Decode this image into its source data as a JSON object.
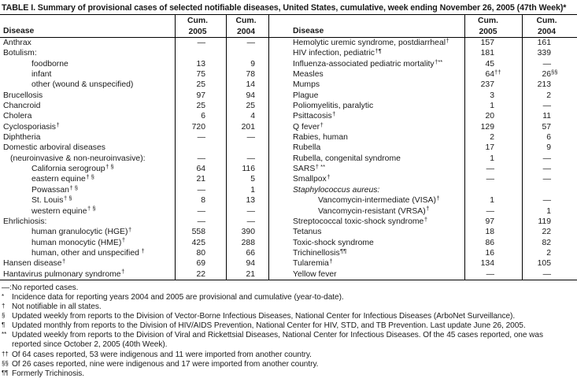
{
  "title": "TABLE I. Summary of provisional cases of selected notifiable diseases, United States, cumulative, week ending November 26, 2005 (47th Week)*",
  "colors": {
    "background": "#ffffff",
    "text": "#1a1a1a",
    "rule": "#000000"
  },
  "table": {
    "header": {
      "disease_left": "Disease",
      "disease_right": "Disease",
      "cum": "Cum.",
      "year_2005": "2005",
      "year_2004": "2004"
    },
    "rows": [
      {
        "l": {
          "t": "Anthrax",
          "a": "—",
          "b": "—"
        },
        "r": {
          "t": "Hemolytic uremic syndrome, postdiarrheal",
          "s": "†",
          "a": "157",
          "b": "161"
        }
      },
      {
        "l": {
          "t": "Botulism:"
        },
        "r": {
          "t": "HIV infection, pediatric",
          "s": "†¶",
          "a": "181",
          "b": "339"
        }
      },
      {
        "l": {
          "t": "foodborne",
          "i": 2,
          "a": "13",
          "b": "9"
        },
        "r": {
          "t": "Influenza-associated pediatric mortality",
          "s": "†**",
          "a": "45",
          "b": "—"
        }
      },
      {
        "l": {
          "t": "infant",
          "i": 2,
          "a": "75",
          "b": "78"
        },
        "r": {
          "t": "Measles",
          "a": "64",
          "as": "††",
          "b": "26",
          "bs": "§§"
        }
      },
      {
        "l": {
          "t": "other (wound & unspecified)",
          "i": 2,
          "a": "25",
          "b": "14"
        },
        "r": {
          "t": "Mumps",
          "a": "237",
          "b": "213"
        }
      },
      {
        "l": {
          "t": "Brucellosis",
          "a": "97",
          "b": "94"
        },
        "r": {
          "t": "Plague",
          "a": "3",
          "b": "2"
        }
      },
      {
        "l": {
          "t": "Chancroid",
          "a": "25",
          "b": "25"
        },
        "r": {
          "t": "Poliomyelitis, paralytic",
          "a": "1",
          "b": "—"
        }
      },
      {
        "l": {
          "t": "Cholera",
          "a": "6",
          "b": "4"
        },
        "r": {
          "t": "Psittacosis",
          "s": "†",
          "a": "20",
          "b": "11"
        }
      },
      {
        "l": {
          "t": "Cyclosporiasis",
          "s": "†",
          "a": "720",
          "b": "201"
        },
        "r": {
          "t": "Q fever",
          "s": "†",
          "a": "129",
          "b": "57"
        }
      },
      {
        "l": {
          "t": "Diphtheria",
          "a": "—",
          "b": "—"
        },
        "r": {
          "t": "Rabies, human",
          "a": "2",
          "b": "6"
        }
      },
      {
        "l": {
          "t": "Domestic arboviral diseases"
        },
        "r": {
          "t": "Rubella",
          "a": "17",
          "b": "9"
        }
      },
      {
        "l": {
          "t": "(neuroinvasive & non-neuroinvasive):",
          "i": 1,
          "a": "—",
          "b": "—"
        },
        "r": {
          "t": "Rubella, congenital syndrome",
          "a": "1",
          "b": "—"
        }
      },
      {
        "l": {
          "t": "California serogroup",
          "s": "† §",
          "i": 2,
          "a": "64",
          "b": "116"
        },
        "r": {
          "t": "SARS",
          "s": "† **",
          "a": "—",
          "b": "—"
        }
      },
      {
        "l": {
          "t": "eastern equine",
          "s": "† §",
          "i": 2,
          "a": "21",
          "b": "5"
        },
        "r": {
          "t": "Smallpox",
          "s": "†",
          "a": "—",
          "b": "—"
        }
      },
      {
        "l": {
          "t": "Powassan",
          "s": "† §",
          "i": 2,
          "a": "—",
          "b": "1"
        },
        "r": {
          "t": "Staphylococcus aureus:",
          "it": true
        }
      },
      {
        "l": {
          "t": "St. Louis",
          "s": "† §",
          "i": 2,
          "a": "8",
          "b": "13"
        },
        "r": {
          "t": "Vancomycin-intermediate (VISA)",
          "s": "†",
          "i": 2,
          "a": "1",
          "b": "—"
        }
      },
      {
        "l": {
          "t": "western equine",
          "s": "† §",
          "i": 2,
          "a": "—",
          "b": "—"
        },
        "r": {
          "t": "Vancomycin-resistant (VRSA)",
          "s": "†",
          "i": 2,
          "a": "—",
          "b": "1"
        }
      },
      {
        "l": {
          "t": "Ehrlichiosis:",
          "a": "—",
          "b": "—"
        },
        "r": {
          "t": "Streptococcal toxic-shock syndrome",
          "s": "†",
          "a": "97",
          "b": "119"
        }
      },
      {
        "l": {
          "t": "human granulocytic (HGE)",
          "s": "†",
          "i": 2,
          "a": "558",
          "b": "390"
        },
        "r": {
          "t": "Tetanus",
          "a": "18",
          "b": "22"
        }
      },
      {
        "l": {
          "t": "human monocytic (HME)",
          "s": "†",
          "i": 2,
          "a": "425",
          "b": "288"
        },
        "r": {
          "t": "Toxic-shock syndrome",
          "a": "86",
          "b": "82"
        }
      },
      {
        "l": {
          "t": "human, other and unspecified",
          "s": " †",
          "i": 2,
          "a": "80",
          "b": "66"
        },
        "r": {
          "t": "Trichinellosis",
          "s": "¶¶",
          "a": "16",
          "b": "2"
        }
      },
      {
        "l": {
          "t": "Hansen disease",
          "s": "†",
          "a": "69",
          "b": "94"
        },
        "r": {
          "t": "Tularemia",
          "s": "†",
          "a": "134",
          "b": "105"
        }
      },
      {
        "l": {
          "t": "Hantavirus pulmonary syndrome",
          "s": "†",
          "a": "22",
          "b": "21"
        },
        "r": {
          "t": "Yellow fever",
          "a": "—",
          "b": "—"
        }
      }
    ]
  },
  "footnotes": [
    {
      "marker": "—:",
      "raised": false,
      "lines": [
        "No reported cases."
      ]
    },
    {
      "marker": "*",
      "raised": true,
      "lines": [
        "Incidence data for reporting years 2004 and 2005 are provisional and cumulative (year-to-date)."
      ]
    },
    {
      "marker": "†",
      "raised": true,
      "lines": [
        "Not notifiable in all states."
      ]
    },
    {
      "marker": "§",
      "raised": true,
      "lines": [
        "Updated weekly from reports to the Division of Vector-Borne Infectious Diseases, National Center for Infectious Diseases (ArboNet Surveillance)."
      ]
    },
    {
      "marker": "¶",
      "raised": true,
      "lines": [
        "Updated monthly from reports to the Division of HIV/AIDS Prevention, National Center for HIV, STD, and TB Prevention. Last update June 26, 2005."
      ]
    },
    {
      "marker": "**",
      "raised": true,
      "lines": [
        "Updated weekly from reports to the Division of Viral and Rickettsial Diseases, National Center for Infectious Diseases. Of the 45 cases reported, one was",
        "reported since October 2, 2005 (40th Week)."
      ]
    },
    {
      "marker": "††",
      "raised": true,
      "lines": [
        "Of 64 cases reported, 53 were indigenous and 11 were imported from another country."
      ]
    },
    {
      "marker": "§§",
      "raised": true,
      "lines": [
        "Of 26 cases reported, nine were indigenous and 17 were imported from another country."
      ]
    },
    {
      "marker": "¶¶",
      "raised": true,
      "lines": [
        "Formerly Trichinosis."
      ]
    }
  ]
}
